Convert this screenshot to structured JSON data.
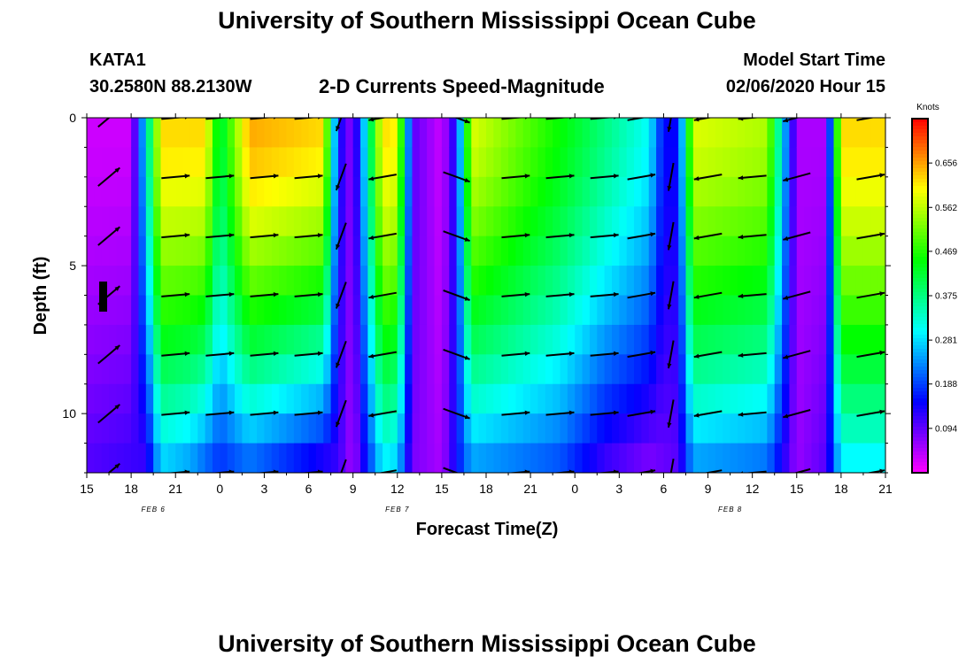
{
  "header": {
    "title_top": "University of Southern Mississippi Ocean Cube",
    "title_bottom": "University of Southern Mississippi Ocean Cube",
    "station": "KATA1",
    "location": "30.2580N 88.2130W",
    "plot_title": "2-D Currents Speed-Magnitude",
    "model_label": "Model Start Time",
    "model_time": "02/06/2020 Hour 15"
  },
  "chart_data": {
    "type": "heatmap",
    "title": "2-D Currents Speed-Magnitude",
    "xlabel": "Forecast Time(Z)",
    "ylabel": "Depth (ft)",
    "x_tick_labels": [
      "15",
      "18",
      "21",
      "0",
      "3",
      "6",
      "9",
      "12",
      "15",
      "18",
      "21",
      "0",
      "3",
      "6",
      "9",
      "12",
      "15",
      "18",
      "21"
    ],
    "x_range_hours": [
      0,
      54
    ],
    "date_labels": [
      {
        "label": "FEB 6",
        "hour": 4.5
      },
      {
        "label": "FEB 7",
        "hour": 21
      },
      {
        "label": "FEB 8",
        "hour": 43.5
      }
    ],
    "y_ticks": [
      0,
      5,
      10
    ],
    "y_range_ft": [
      0,
      12
    ],
    "colorbar": {
      "units": "Knots",
      "min": 0.0,
      "max": 0.75,
      "ticks": [
        "0.656",
        "0.562",
        "0.469",
        "0.375",
        "0.281",
        "0.188",
        "0.094"
      ]
    },
    "speed_profile_surface": [
      {
        "h": 0,
        "v": 0.03
      },
      {
        "h": 3,
        "v": 0.03
      },
      {
        "h": 4,
        "v": 0.3
      },
      {
        "h": 5,
        "v": 0.62
      },
      {
        "h": 8,
        "v": 0.62
      },
      {
        "h": 9,
        "v": 0.4
      },
      {
        "h": 11,
        "v": 0.65
      },
      {
        "h": 16,
        "v": 0.62
      },
      {
        "h": 17,
        "v": 0.15
      },
      {
        "h": 18,
        "v": 0.06
      },
      {
        "h": 20,
        "v": 0.62
      },
      {
        "h": 21,
        "v": 0.6
      },
      {
        "h": 22,
        "v": 0.1
      },
      {
        "h": 24,
        "v": 0.03
      },
      {
        "h": 25,
        "v": 0.15
      },
      {
        "h": 26,
        "v": 0.58
      },
      {
        "h": 32,
        "v": 0.45
      },
      {
        "h": 38,
        "v": 0.3
      },
      {
        "h": 39,
        "v": 0.15
      },
      {
        "h": 40,
        "v": 0.15
      },
      {
        "h": 41,
        "v": 0.58
      },
      {
        "h": 46,
        "v": 0.55
      },
      {
        "h": 48,
        "v": 0.05
      },
      {
        "h": 50,
        "v": 0.05
      },
      {
        "h": 51,
        "v": 0.62
      },
      {
        "h": 54,
        "v": 0.62
      }
    ],
    "speed_profile_bottom": [
      {
        "h": 0,
        "v": 0.1
      },
      {
        "h": 4,
        "v": 0.12
      },
      {
        "h": 5,
        "v": 0.28
      },
      {
        "h": 7,
        "v": 0.25
      },
      {
        "h": 9,
        "v": 0.18
      },
      {
        "h": 11,
        "v": 0.22
      },
      {
        "h": 17,
        "v": 0.12
      },
      {
        "h": 18,
        "v": 0.05
      },
      {
        "h": 20,
        "v": 0.3
      },
      {
        "h": 21,
        "v": 0.28
      },
      {
        "h": 22,
        "v": 0.08
      },
      {
        "h": 24,
        "v": 0.05
      },
      {
        "h": 25,
        "v": 0.15
      },
      {
        "h": 26,
        "v": 0.25
      },
      {
        "h": 32,
        "v": 0.2
      },
      {
        "h": 35,
        "v": 0.12
      },
      {
        "h": 38,
        "v": 0.08
      },
      {
        "h": 40,
        "v": 0.1
      },
      {
        "h": 41,
        "v": 0.25
      },
      {
        "h": 46,
        "v": 0.22
      },
      {
        "h": 48,
        "v": 0.06
      },
      {
        "h": 50,
        "v": 0.1
      },
      {
        "h": 51,
        "v": 0.3
      },
      {
        "h": 54,
        "v": 0.3
      }
    ],
    "vector_times_hours": [
      1.5,
      6,
      9,
      12,
      15,
      17.2,
      20,
      25,
      29,
      32,
      35,
      37.5,
      39.5,
      42,
      45,
      48,
      53
    ],
    "vector_depths_ft": [
      0,
      2,
      4,
      6,
      8,
      10,
      12
    ],
    "vector_direction_by_time_deg": [
      40,
      5,
      5,
      5,
      5,
      250,
      190,
      340,
      5,
      5,
      5,
      10,
      260,
      190,
      185,
      195,
      10
    ]
  }
}
